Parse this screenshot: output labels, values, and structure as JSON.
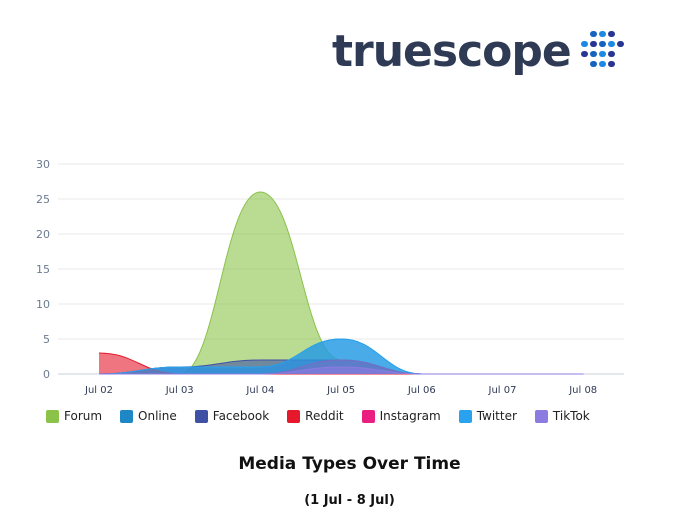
{
  "brand": {
    "name": "truescope",
    "text_color": "#2f3b55",
    "mark_colors": [
      "#1565c0",
      "#1e88e5",
      "#283593"
    ]
  },
  "caption": {
    "title": "Media Types Over Time",
    "subtitle": "(1 Jul - 8 Jul)"
  },
  "chart_data": {
    "type": "area",
    "title": "Media Types Over Time",
    "subtitle": "(1 Jul - 8 Jul)",
    "categories": [
      "Jul 02",
      "Jul 03",
      "Jul 04",
      "Jul 05",
      "Jul 06",
      "Jul 07",
      "Jul 08"
    ],
    "ylim": [
      0,
      30
    ],
    "yticks": [
      0,
      5,
      10,
      15,
      20,
      25,
      30
    ],
    "grid": true,
    "legend_position": "bottom-left",
    "series": [
      {
        "name": "Forum",
        "color": "#8bc34a",
        "values": [
          0,
          0,
          26,
          2,
          0,
          0,
          0
        ]
      },
      {
        "name": "Online",
        "color": "#1e88c7",
        "values": [
          0,
          1,
          1,
          5,
          0,
          0,
          0
        ]
      },
      {
        "name": "Facebook",
        "color": "#3f51a5",
        "values": [
          0,
          1,
          2,
          2,
          0,
          0,
          0
        ]
      },
      {
        "name": "Reddit",
        "color": "#e5192b",
        "values": [
          3,
          0,
          0,
          0,
          0,
          0,
          0
        ]
      },
      {
        "name": "Instagram",
        "color": "#e91e80",
        "values": [
          0,
          0,
          0,
          2,
          0,
          0,
          0
        ]
      },
      {
        "name": "Twitter",
        "color": "#29a3f0",
        "values": [
          0,
          1,
          1,
          5,
          0,
          0,
          0
        ]
      },
      {
        "name": "TikTok",
        "color": "#8c7be0",
        "values": [
          0,
          0,
          0,
          1,
          0,
          0,
          0
        ]
      }
    ]
  }
}
